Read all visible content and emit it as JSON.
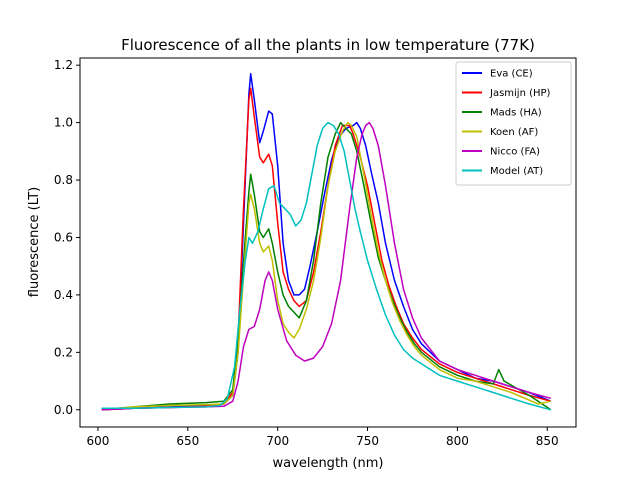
{
  "chart_data": {
    "type": "line",
    "title": "Fluorescence of all the plants in low temperature (77K)",
    "xlabel": "wavelength (nm)",
    "ylabel": "fluorescence (LT)",
    "xlim": [
      590,
      866
    ],
    "ylim": [
      -0.06,
      1.225
    ],
    "xticks": [
      600,
      650,
      700,
      750,
      800,
      850
    ],
    "xtick_labels": [
      "600",
      "650",
      "700",
      "750",
      "800",
      "850"
    ],
    "yticks": [
      0.0,
      0.2,
      0.4,
      0.6,
      0.8,
      1.0,
      1.2
    ],
    "ytick_labels": [
      "0.0",
      "0.2",
      "0.4",
      "0.6",
      "0.8",
      "1.0",
      "1.2"
    ],
    "grid": false,
    "legend_position": "top-right",
    "series": [
      {
        "name": "Eva (CE)",
        "color": "#0000ff",
        "x": [
          602,
          620,
          640,
          660,
          670,
          675,
          678,
          681,
          684,
          685,
          687,
          690,
          692,
          695,
          697,
          700,
          703,
          706,
          709,
          712,
          715,
          718,
          722,
          726,
          730,
          734,
          738,
          742,
          744,
          746,
          749,
          752,
          756,
          760,
          765,
          770,
          775,
          780,
          790,
          800,
          810,
          820,
          830,
          840,
          852
        ],
        "y": [
          0.0,
          0.005,
          0.01,
          0.015,
          0.02,
          0.05,
          0.2,
          0.65,
          1.1,
          1.17,
          1.08,
          0.93,
          0.97,
          1.04,
          1.03,
          0.85,
          0.58,
          0.45,
          0.4,
          0.4,
          0.42,
          0.5,
          0.62,
          0.75,
          0.87,
          0.95,
          0.98,
          0.99,
          1.0,
          0.98,
          0.92,
          0.83,
          0.72,
          0.58,
          0.45,
          0.36,
          0.28,
          0.23,
          0.17,
          0.14,
          0.11,
          0.1,
          0.08,
          0.06,
          0.03
        ]
      },
      {
        "name": "Jasmijn (HP)",
        "color": "#ff0000",
        "x": [
          602,
          620,
          640,
          660,
          670,
          675,
          678,
          681,
          684,
          685,
          687,
          690,
          692,
          695,
          697,
          700,
          703,
          706,
          709,
          712,
          716,
          720,
          724,
          728,
          732,
          736,
          740,
          742,
          744,
          746,
          750,
          754,
          758,
          762,
          766,
          770,
          775,
          780,
          790,
          800,
          810,
          820,
          830,
          840,
          852
        ],
        "y": [
          0.0,
          0.005,
          0.008,
          0.012,
          0.02,
          0.06,
          0.25,
          0.7,
          1.08,
          1.12,
          1.02,
          0.88,
          0.86,
          0.89,
          0.85,
          0.65,
          0.48,
          0.42,
          0.38,
          0.36,
          0.38,
          0.48,
          0.62,
          0.78,
          0.92,
          0.99,
          0.99,
          0.96,
          0.92,
          0.88,
          0.78,
          0.65,
          0.52,
          0.43,
          0.36,
          0.3,
          0.25,
          0.21,
          0.16,
          0.13,
          0.11,
          0.09,
          0.07,
          0.05,
          0.03
        ]
      },
      {
        "name": "Mads (HA)",
        "color": "#008000",
        "x": [
          602,
          620,
          640,
          660,
          670,
          675,
          678,
          682,
          684,
          685,
          687,
          690,
          692,
          695,
          697,
          700,
          703,
          706,
          709,
          712,
          716,
          720,
          724,
          728,
          732,
          735,
          738,
          741,
          744,
          748,
          752,
          756,
          760,
          764,
          768,
          772,
          776,
          780,
          790,
          800,
          810,
          820,
          823,
          826,
          840,
          852
        ],
        "y": [
          0.0,
          0.01,
          0.02,
          0.025,
          0.03,
          0.07,
          0.25,
          0.6,
          0.76,
          0.82,
          0.75,
          0.62,
          0.6,
          0.63,
          0.58,
          0.48,
          0.4,
          0.36,
          0.34,
          0.32,
          0.38,
          0.52,
          0.72,
          0.88,
          0.96,
          1.0,
          0.98,
          0.96,
          0.9,
          0.78,
          0.65,
          0.53,
          0.45,
          0.38,
          0.32,
          0.27,
          0.23,
          0.2,
          0.15,
          0.12,
          0.1,
          0.09,
          0.14,
          0.1,
          0.05,
          0.0
        ]
      },
      {
        "name": "Koen (AF)",
        "color": "#bfbf00",
        "x": [
          602,
          620,
          640,
          660,
          670,
          675,
          678,
          682,
          684,
          685,
          687,
          690,
          692,
          695,
          697,
          700,
          703,
          706,
          709,
          712,
          716,
          720,
          724,
          728,
          732,
          736,
          739,
          741,
          744,
          748,
          752,
          756,
          760,
          764,
          768,
          772,
          776,
          780,
          790,
          800,
          810,
          820,
          830,
          845,
          852
        ],
        "y": [
          0.0,
          0.01,
          0.015,
          0.018,
          0.02,
          0.05,
          0.2,
          0.55,
          0.72,
          0.75,
          0.7,
          0.58,
          0.55,
          0.57,
          0.52,
          0.38,
          0.3,
          0.27,
          0.25,
          0.28,
          0.35,
          0.45,
          0.6,
          0.78,
          0.9,
          0.97,
          1.0,
          0.99,
          0.95,
          0.82,
          0.68,
          0.55,
          0.45,
          0.37,
          0.31,
          0.26,
          0.22,
          0.19,
          0.14,
          0.11,
          0.1,
          0.08,
          0.06,
          0.02,
          0.03
        ]
      },
      {
        "name": "Nicco (FA)",
        "color": "#bf00bf",
        "x": [
          602,
          620,
          640,
          660,
          670,
          675,
          678,
          681,
          684,
          687,
          690,
          693,
          695,
          697,
          700,
          705,
          710,
          715,
          720,
          725,
          730,
          735,
          740,
          744,
          747,
          749,
          751,
          753,
          756,
          760,
          765,
          770,
          775,
          780,
          790,
          800,
          810,
          820,
          830,
          840,
          852
        ],
        "y": [
          0.0,
          0.005,
          0.008,
          0.01,
          0.012,
          0.03,
          0.1,
          0.22,
          0.28,
          0.29,
          0.35,
          0.45,
          0.48,
          0.45,
          0.35,
          0.24,
          0.19,
          0.17,
          0.18,
          0.22,
          0.3,
          0.45,
          0.7,
          0.88,
          0.96,
          0.99,
          1.0,
          0.98,
          0.92,
          0.78,
          0.58,
          0.42,
          0.32,
          0.25,
          0.17,
          0.14,
          0.12,
          0.1,
          0.08,
          0.06,
          0.04
        ]
      },
      {
        "name": "Model (AT)",
        "color": "#00bfbf",
        "x": [
          602,
          620,
          640,
          660,
          668,
          672,
          676,
          679,
          682,
          684,
          686,
          689,
          692,
          695,
          698,
          701,
          704,
          707,
          710,
          713,
          716,
          719,
          722,
          725,
          728,
          731,
          734,
          737,
          740,
          743,
          746,
          750,
          755,
          760,
          765,
          770,
          775,
          780,
          790,
          800,
          810,
          820,
          830,
          840,
          852
        ],
        "y": [
          0.005,
          0.005,
          0.008,
          0.01,
          0.015,
          0.04,
          0.15,
          0.35,
          0.52,
          0.6,
          0.58,
          0.62,
          0.7,
          0.77,
          0.78,
          0.72,
          0.7,
          0.68,
          0.64,
          0.66,
          0.72,
          0.82,
          0.92,
          0.98,
          1.0,
          0.99,
          0.96,
          0.9,
          0.8,
          0.7,
          0.62,
          0.52,
          0.42,
          0.33,
          0.26,
          0.21,
          0.18,
          0.16,
          0.12,
          0.1,
          0.08,
          0.06,
          0.04,
          0.02,
          0.0
        ]
      }
    ]
  }
}
